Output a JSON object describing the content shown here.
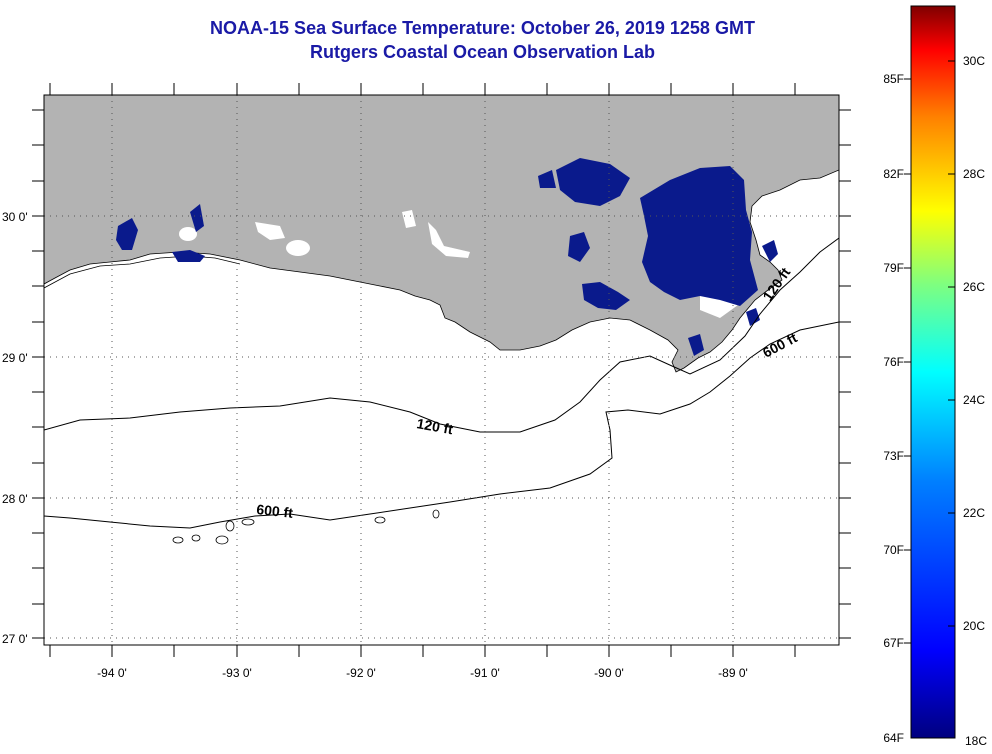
{
  "title_line1": "NOAA-15 Sea Surface Temperature:  October 26, 2019 1258 GMT",
  "title_line2": "Rutgers Coastal Ocean Observation Lab",
  "lat_labels": [
    "30 0'",
    "29 0'",
    "28 0'",
    "27 0'"
  ],
  "lon_labels": [
    "-94 0'",
    "-93 0'",
    "-92 0'",
    "-91 0'",
    "-90 0'",
    "-89 0'"
  ],
  "contours": {
    "label_120_left": "120 ft",
    "label_600_left": "600 ft",
    "label_120_right": "120 ft",
    "label_600_right": "600 ft"
  },
  "colorbar": {
    "f_labels": [
      "85F",
      "82F",
      "79F",
      "76F",
      "73F",
      "70F",
      "67F",
      "64F"
    ],
    "c_labels": [
      "30C",
      "28C",
      "26C",
      "24C",
      "22C",
      "20C",
      "18C"
    ],
    "colors": [
      "#00007f",
      "#0000ff",
      "#007fff",
      "#00ffff",
      "#7fff7f",
      "#ffff00",
      "#ff7f00",
      "#ff0000",
      "#7f0000"
    ]
  },
  "land_color": "#b3b3b3",
  "sst_patch_color": "#0a1a8c"
}
